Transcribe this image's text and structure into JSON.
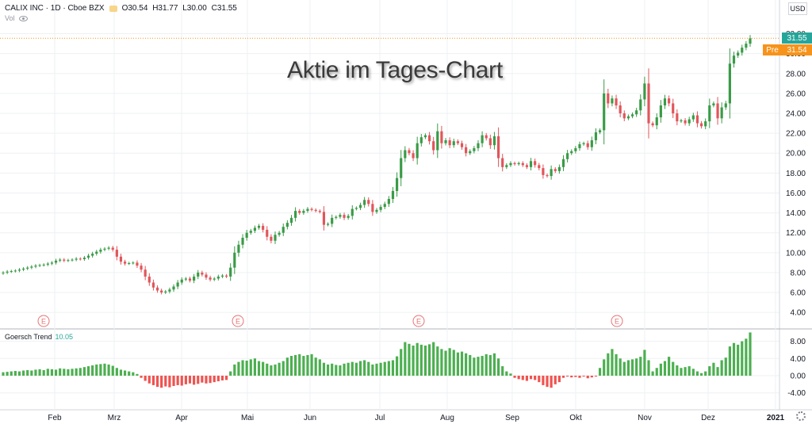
{
  "header": {
    "symbol": "CALIX INC · 1D · Cboe BZX",
    "open": "O30.54",
    "high": "H31.77",
    "low": "L30.00",
    "close": "C31.55",
    "vol_label": "Vol",
    "currency": "USD"
  },
  "watermark": "Aktie im Tages-Chart",
  "last_price_label": "31.55",
  "pre_label": "Pre",
  "pre_price_label": "31.54",
  "indicator": {
    "name": "Goersch Trend",
    "value": "10.05"
  },
  "colors": {
    "up": "#3a9b47",
    "down": "#e0565b",
    "ind_up": "#4caf50",
    "ind_down": "#ef5350",
    "last_price": "#26a69a",
    "pre": "#f7931a",
    "grid": "#eef0f3"
  },
  "chart_data": [
    {
      "type": "candlestick",
      "title": "Aktie im Tages-Chart",
      "y_ticks": [
        "4.00",
        "6.00",
        "8.00",
        "10.00",
        "12.00",
        "14.00",
        "16.00",
        "18.00",
        "20.00",
        "22.00",
        "24.00",
        "26.00",
        "28.00",
        "30.00",
        "32.00"
      ],
      "ylim": [
        2.5,
        33.0
      ],
      "x_ticks": [
        "Feb",
        "Mrz",
        "Apr",
        "Mai",
        "Jun",
        "Jul",
        "Aug",
        "Sep",
        "Okt",
        "Nov",
        "Dez",
        "2021"
      ],
      "earnings_markers": [
        "E",
        "E",
        "E",
        "E"
      ],
      "closes": [
        8.0,
        8.1,
        8.15,
        8.2,
        8.3,
        8.4,
        8.5,
        8.6,
        8.7,
        8.75,
        8.8,
        8.9,
        9.0,
        9.2,
        9.3,
        9.2,
        9.25,
        9.3,
        9.4,
        9.35,
        9.5,
        9.7,
        9.9,
        10.1,
        10.3,
        10.4,
        10.5,
        10.3,
        9.6,
        9.1,
        8.9,
        8.95,
        9.0,
        8.7,
        8.3,
        7.6,
        7.0,
        6.5,
        6.2,
        6.0,
        6.1,
        6.3,
        6.6,
        7.0,
        7.3,
        7.4,
        7.2,
        7.6,
        8.0,
        7.8,
        7.5,
        7.3,
        7.4,
        7.6,
        7.7,
        7.6,
        8.5,
        10.0,
        10.8,
        11.5,
        12.0,
        12.2,
        12.5,
        12.7,
        12.3,
        11.6,
        11.2,
        11.8,
        12.0,
        12.6,
        13.0,
        13.5,
        14.2,
        14.0,
        14.2,
        14.4,
        14.3,
        14.2,
        14.1,
        12.8,
        12.9,
        13.5,
        13.6,
        13.8,
        13.5,
        13.7,
        14.4,
        14.5,
        14.8,
        15.3,
        14.9,
        14.1,
        14.3,
        14.6,
        14.9,
        15.4,
        16.2,
        17.5,
        19.5,
        20.3,
        20.0,
        19.5,
        21.0,
        21.6,
        21.8,
        21.2,
        20.3,
        22.2,
        21.0,
        21.3,
        20.8,
        21.2,
        21.0,
        20.6,
        20.0,
        20.2,
        20.5,
        21.0,
        21.8,
        21.5,
        20.8,
        21.7,
        19.5,
        18.6,
        18.8,
        19.0,
        18.9,
        19.0,
        18.8,
        18.6,
        19.2,
        18.8,
        18.5,
        17.8,
        17.7,
        18.4,
        18.2,
        18.6,
        19.4,
        20.0,
        20.2,
        20.5,
        20.9,
        21.0,
        20.6,
        21.3,
        22.1,
        22.3,
        26.0,
        25.0,
        25.5,
        24.8,
        24.0,
        23.5,
        23.7,
        23.9,
        24.3,
        25.4,
        27.0,
        23.0,
        22.8,
        23.6,
        24.8,
        25.5,
        25.0,
        24.0,
        23.2,
        23.3,
        23.0,
        23.4,
        23.8,
        23.0,
        22.7,
        23.2,
        24.8,
        25.0,
        23.5,
        24.6,
        25.0,
        29.0,
        29.8,
        30.1,
        30.6,
        31.0,
        31.55
      ],
      "indicator_values": [
        0.8,
        0.9,
        1.0,
        1.1,
        1.0,
        1.2,
        1.3,
        1.2,
        1.4,
        1.5,
        1.3,
        1.6,
        1.5,
        1.4,
        1.7,
        1.6,
        1.5,
        1.6,
        1.7,
        1.8,
        2.0,
        2.2,
        2.4,
        2.6,
        2.7,
        2.8,
        2.6,
        2.3,
        1.8,
        1.4,
        1.2,
        1.0,
        0.8,
        0.4,
        -0.5,
        -1.2,
        -1.8,
        -2.2,
        -2.6,
        -2.8,
        -2.5,
        -2.7,
        -2.4,
        -2.2,
        -2.3,
        -2.0,
        -1.8,
        -2.1,
        -1.9,
        -1.6,
        -1.8,
        -1.7,
        -1.5,
        -1.3,
        -1.1,
        -1.0,
        1.0,
        2.6,
        3.2,
        3.6,
        3.5,
        3.8,
        4.0,
        3.4,
        3.2,
        2.8,
        2.4,
        2.6,
        3.0,
        3.4,
        4.2,
        4.6,
        4.8,
        5.0,
        4.6,
        4.8,
        5.0,
        4.2,
        3.8,
        3.0,
        2.6,
        2.8,
        2.5,
        2.4,
        2.8,
        3.0,
        3.2,
        3.0,
        3.4,
        3.6,
        3.2,
        2.6,
        2.8,
        3.0,
        3.2,
        3.4,
        3.6,
        4.5,
        6.2,
        7.8,
        7.4,
        7.0,
        7.6,
        7.2,
        7.0,
        7.3,
        7.8,
        6.8,
        6.2,
        5.8,
        6.4,
        6.0,
        5.4,
        5.6,
        5.2,
        4.8,
        4.2,
        4.4,
        4.6,
        5.0,
        4.8,
        5.2,
        4.0,
        2.2,
        1.0,
        0.5,
        -0.5,
        -0.8,
        -1.0,
        -1.2,
        -0.8,
        -1.0,
        -1.5,
        -2.2,
        -2.6,
        -2.8,
        -2.0,
        -1.5,
        -0.5,
        -0.2,
        -0.4,
        -0.3,
        -0.5,
        -0.2,
        -0.6,
        -0.4,
        -0.2,
        1.8,
        3.8,
        5.2,
        6.2,
        5.0,
        4.0,
        3.2,
        3.6,
        3.8,
        4.0,
        4.4,
        6.0,
        3.6,
        1.0,
        1.8,
        2.8,
        3.4,
        4.4,
        3.2,
        2.4,
        1.8,
        2.0,
        2.2,
        1.6,
        1.0,
        0.6,
        1.0,
        2.2,
        3.0,
        2.0,
        3.6,
        4.2,
        6.8,
        7.6,
        7.2,
        8.0,
        8.6,
        10.05
      ],
      "indicator_y_ticks": [
        "8.00",
        "4.00",
        "0.00",
        "-4.00"
      ],
      "indicator_ylim": [
        -7.0,
        10.5
      ]
    }
  ]
}
